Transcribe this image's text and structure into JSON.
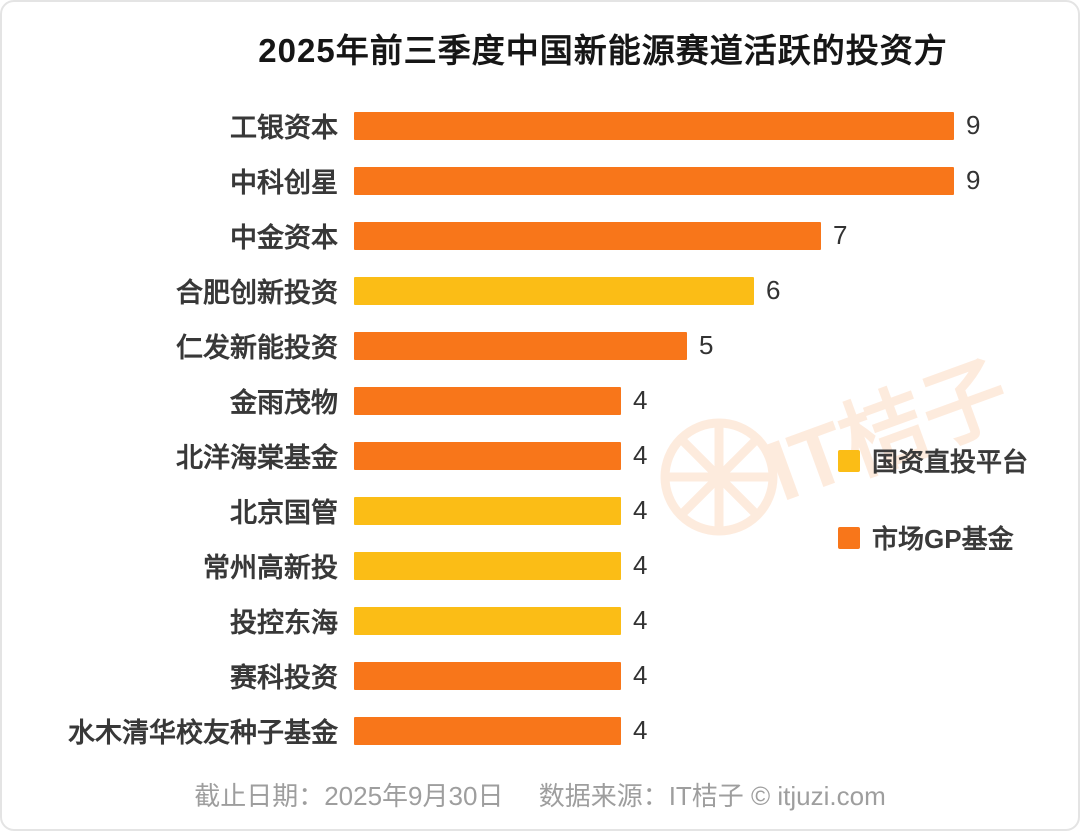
{
  "page": {
    "title": "2025年前三季度中国新能源赛道活跃的投资方",
    "watermark_text": "IT桔子"
  },
  "footer": {
    "date": "截止日期：2025年9月30日",
    "source": "数据来源：IT桔子 © itjuzi.com"
  },
  "colors": {
    "orange": "#F8761A",
    "yellow": "#FBBD16",
    "title_text": "#161616",
    "label_text": "#383838",
    "footer_text": "#9E9E9E",
    "background": "#FFFFFF",
    "border": "#E4E4E4"
  },
  "legend": [
    {
      "label": "国资直投平台",
      "color_key": "yellow"
    },
    {
      "label": "市场GP基金",
      "color_key": "orange"
    }
  ],
  "chart_data": {
    "type": "bar",
    "orientation": "horizontal",
    "title": "2025年前三季度中国新能源赛道活跃的投资方",
    "xlabel": "",
    "ylabel": "",
    "xlim": [
      0,
      9
    ],
    "grid": false,
    "legend_position": "right",
    "categories": [
      "工银资本",
      "中科创星",
      "中金资本",
      "合肥创新投资",
      "仁发新能投资",
      "金雨茂物",
      "北洋海棠基金",
      "北京国管",
      "常州高新投",
      "投控东海",
      "赛科投资",
      "水木清华校友种子基金"
    ],
    "values": [
      9,
      9,
      7,
      6,
      5,
      4,
      4,
      4,
      4,
      4,
      4,
      4
    ],
    "groups": [
      "市场GP基金",
      "市场GP基金",
      "市场GP基金",
      "国资直投平台",
      "市场GP基金",
      "市场GP基金",
      "市场GP基金",
      "国资直投平台",
      "国资直投平台",
      "国资直投平台",
      "市场GP基金",
      "市场GP基金"
    ]
  }
}
